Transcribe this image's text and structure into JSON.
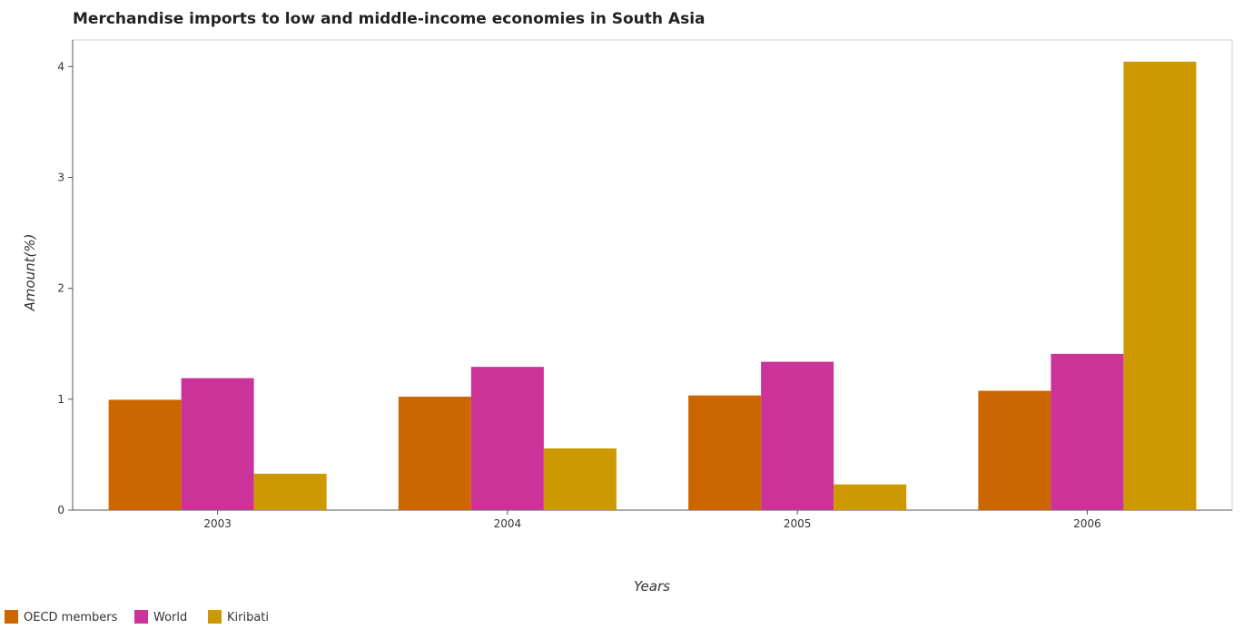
{
  "chart_data": {
    "type": "bar",
    "title": "Merchandise imports to low and middle-income economies in South Asia",
    "xlabel": "Years",
    "ylabel": "Amount(%)",
    "categories": [
      "2003",
      "2004",
      "2005",
      "2006"
    ],
    "series": [
      {
        "name": "OECD members",
        "color": "#cc6600",
        "values": [
          0.995,
          1.023,
          1.034,
          1.076
        ]
      },
      {
        "name": "World",
        "color": "#cc3399",
        "values": [
          1.19,
          1.292,
          1.338,
          1.409
        ]
      },
      {
        "name": "Kiribati",
        "color": "#cc9900",
        "values": [
          0.328,
          0.556,
          0.232,
          4.044
        ]
      }
    ],
    "ylim": [
      0,
      4.24
    ],
    "yticks": [
      "0",
      "1",
      "2",
      "3",
      "4"
    ],
    "grid": false,
    "legend_position": "bottom-left"
  }
}
